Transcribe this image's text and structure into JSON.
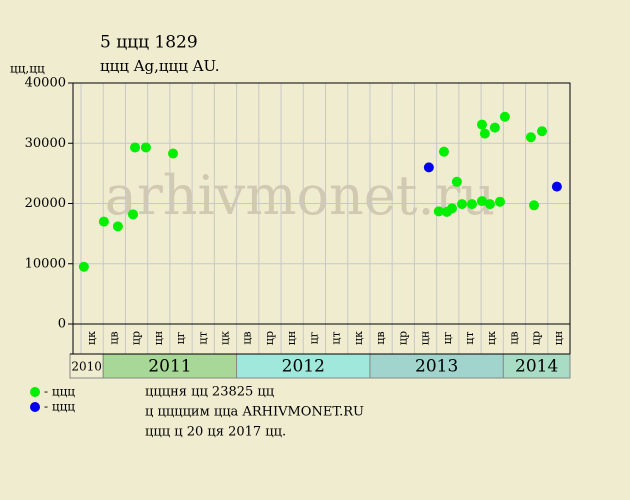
{
  "chart_data": {
    "type": "scatter",
    "title": "5 ццц 1829",
    "subtitle": "ццц Ag,ццц AU.",
    "y_label": "цц,цц",
    "watermark": "arhivmonet.ru",
    "ylim": [
      0,
      40000
    ],
    "yticks": [
      0,
      10000,
      20000,
      30000,
      40000
    ],
    "xlim": [
      -0.36,
      22
    ],
    "grid": true,
    "periods": [
      {
        "year": "2010",
        "color": "#f0ecd0",
        "months": [
          "цк"
        ]
      },
      {
        "year": "2011",
        "color": "#a8d898",
        "months": [
          "цв",
          "цр",
          "цн",
          "цг",
          "цт",
          "цк"
        ]
      },
      {
        "year": "2012",
        "color": "#a0e8dc",
        "months": [
          "цв",
          "цр",
          "цн",
          "цг",
          "цт",
          "цк"
        ]
      },
      {
        "year": "2013",
        "color": "#a0d4cc",
        "months": [
          "цв",
          "цр",
          "цн",
          "цг",
          "цт",
          "цк"
        ]
      },
      {
        "year": "2014",
        "color": "#a8dcc4",
        "months": [
          "цв",
          "цр",
          "цн"
        ]
      }
    ],
    "series": [
      {
        "name": "- ццц",
        "color": "#00ee00",
        "x": [
          0.13,
          1.03,
          1.66,
          2.34,
          2.43,
          2.92,
          4.14,
          16.1,
          16.33,
          16.46,
          16.69,
          16.91,
          17.14,
          17.59,
          18.04,
          18.04,
          18.17,
          18.4,
          18.62,
          18.85,
          19.07,
          20.24,
          20.38,
          20.74
        ],
        "values": [
          9500,
          17000,
          16200,
          18200,
          29300,
          29300,
          28300,
          18700,
          28600,
          18600,
          19200,
          23600,
          19900,
          19900,
          33100,
          20400,
          31600,
          19900,
          32600,
          20300,
          34400,
          31000,
          19700,
          32000
        ]
      },
      {
        "name": "- ццц",
        "color": "#0000ee",
        "x": [
          15.65,
          21.41
        ],
        "values": [
          26000,
          22800
        ]
      }
    ],
    "notes": [
      "цццня цц 23825 цц",
      "ц ццццим ццa ARHIVMONET.RU",
      "ццц ц 20 ця 2017 цц."
    ]
  }
}
